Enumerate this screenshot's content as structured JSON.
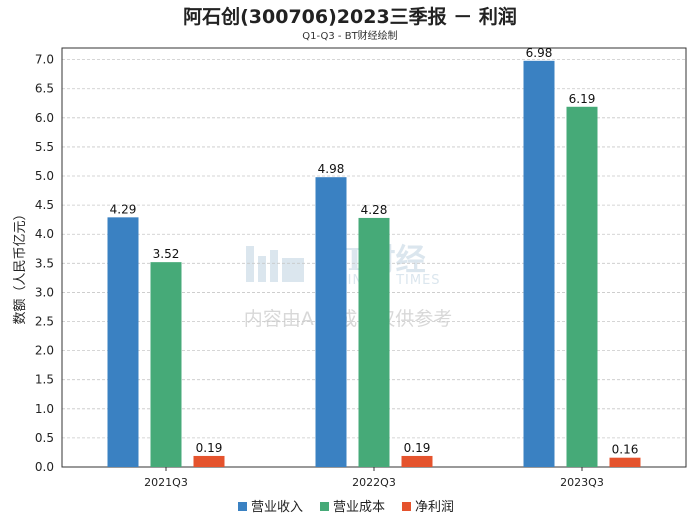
{
  "title": "阿石创(300706)2023三季报 － 利润",
  "subtitle": "Q1-Q3 - BT财经绘制",
  "watermark": {
    "logo": "BT财经",
    "sub": "BUSINESS TIMES",
    "note": "内容由AI生成，仅供参考"
  },
  "chart_data": {
    "type": "bar",
    "categories": [
      "2021Q3",
      "2022Q3",
      "2023Q3"
    ],
    "series": [
      {
        "name": "营业收入",
        "color": "#3a81c2",
        "values": [
          4.29,
          4.98,
          6.98
        ]
      },
      {
        "name": "营业成本",
        "color": "#46aa78",
        "values": [
          3.52,
          4.28,
          6.19
        ]
      },
      {
        "name": "净利润",
        "color": "#e5532d",
        "values": [
          0.19,
          0.19,
          0.16
        ]
      }
    ],
    "ylabel": "数额（人民币亿元）",
    "xlabel": "",
    "ylim": [
      0,
      7.2
    ],
    "yticks": [
      "0.0",
      "0.5",
      "1.0",
      "1.5",
      "2.0",
      "2.5",
      "3.0",
      "3.5",
      "4.0",
      "4.5",
      "5.0",
      "5.5",
      "6.0",
      "6.5",
      "7.0"
    ],
    "grid": true,
    "legend_position": "bottom"
  }
}
